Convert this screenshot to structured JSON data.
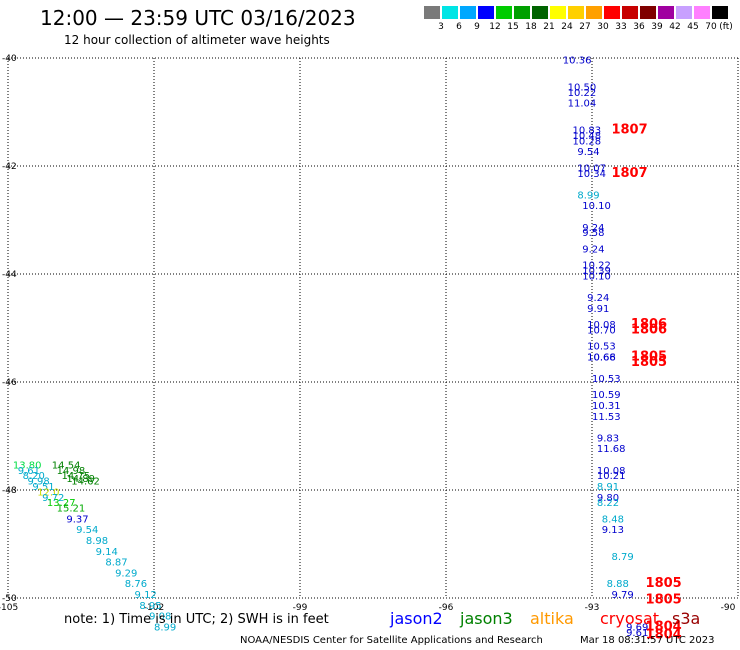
{
  "header": {
    "title": "12:00 — 23:59 UTC 03/16/2023",
    "subtitle": "12 hour collection of altimeter wave heights"
  },
  "color_scale": {
    "unit": "(ft)",
    "bins": [
      {
        "label": "3",
        "color": "#7a7a7a"
      },
      {
        "label": "6",
        "color": "#00e5e5"
      },
      {
        "label": "9",
        "color": "#00a8ff"
      },
      {
        "label": "12",
        "color": "#0000ff"
      },
      {
        "label": "15",
        "color": "#00cc00"
      },
      {
        "label": "18",
        "color": "#00a000"
      },
      {
        "label": "21",
        "color": "#006400"
      },
      {
        "label": "24",
        "color": "#ffff00"
      },
      {
        "label": "27",
        "color": "#ffd000"
      },
      {
        "label": "30",
        "color": "#ffa000"
      },
      {
        "label": "33",
        "color": "#ff0000"
      },
      {
        "label": "36",
        "color": "#c80000"
      },
      {
        "label": "39",
        "color": "#800000"
      },
      {
        "label": "42",
        "color": "#a000a0"
      },
      {
        "label": "45",
        "color": "#c8a0ff"
      },
      {
        "label": "70",
        "color": "#ff80ff"
      },
      {
        "label": "",
        "color": "#000000"
      }
    ]
  },
  "map": {
    "lon_ticks": [
      "-105",
      "-102",
      "-99",
      "-96",
      "-93",
      "-90"
    ],
    "lat_ticks": [
      "-40",
      "-42",
      "-44",
      "-46",
      "-48",
      "-50"
    ],
    "lon_range": [
      -105,
      -90
    ],
    "lat_range": [
      -40,
      -50
    ]
  },
  "observations": [
    {
      "lon": -93.6,
      "lat": -40.1,
      "text": "10.36",
      "color": "#0000cc"
    },
    {
      "lon": -93.5,
      "lat": -40.6,
      "text": "10.50",
      "color": "#0000cc"
    },
    {
      "lon": -93.5,
      "lat": -40.7,
      "text": "10.22",
      "color": "#0000cc"
    },
    {
      "lon": -93.5,
      "lat": -40.9,
      "text": "11.04",
      "color": "#0000cc"
    },
    {
      "lon": -93.4,
      "lat": -41.4,
      "text": "10.83",
      "color": "#0000cc"
    },
    {
      "lon": -93.4,
      "lat": -41.5,
      "text": "10.48",
      "color": "#0000cc"
    },
    {
      "lon": -93.4,
      "lat": -41.6,
      "text": "10.28",
      "color": "#0000cc"
    },
    {
      "lon": -93.3,
      "lat": -41.8,
      "text": "9.54",
      "color": "#0000cc"
    },
    {
      "lon": -93.3,
      "lat": -42.1,
      "text": "10.07",
      "color": "#0000cc"
    },
    {
      "lon": -93.3,
      "lat": -42.2,
      "text": "10.34",
      "color": "#0000cc"
    },
    {
      "lon": -93.3,
      "lat": -42.6,
      "text": "8.99",
      "color": "#00aacc"
    },
    {
      "lon": -93.2,
      "lat": -42.8,
      "text": "10.10",
      "color": "#0000cc"
    },
    {
      "lon": -93.2,
      "lat": -43.2,
      "text": "9.24",
      "color": "#0000cc"
    },
    {
      "lon": -93.2,
      "lat": -43.3,
      "text": "9.58",
      "color": "#0000cc"
    },
    {
      "lon": -93.2,
      "lat": -43.6,
      "text": "9.24",
      "color": "#0000cc"
    },
    {
      "lon": -93.2,
      "lat": -43.9,
      "text": "10.22",
      "color": "#0000cc"
    },
    {
      "lon": -93.2,
      "lat": -44.0,
      "text": "10.39",
      "color": "#0000cc"
    },
    {
      "lon": -93.2,
      "lat": -44.1,
      "text": "10.10",
      "color": "#0000cc"
    },
    {
      "lon": -93.1,
      "lat": -44.5,
      "text": "9.24",
      "color": "#0000cc"
    },
    {
      "lon": -93.1,
      "lat": -44.7,
      "text": "9.91",
      "color": "#0000cc"
    },
    {
      "lon": -93.1,
      "lat": -45.0,
      "text": "10.08",
      "color": "#0000cc"
    },
    {
      "lon": -93.1,
      "lat": -45.1,
      "text": "10.70",
      "color": "#0000cc"
    },
    {
      "lon": -93.1,
      "lat": -45.4,
      "text": "10.53",
      "color": "#0000cc"
    },
    {
      "lon": -93.1,
      "lat": -45.6,
      "text": "10.68",
      "color": "#0000cc"
    },
    {
      "lon": -93.1,
      "lat": -45.6,
      "text": "10.66",
      "color": "#0000cc"
    },
    {
      "lon": -93.0,
      "lat": -46.0,
      "text": "10.53",
      "color": "#0000cc"
    },
    {
      "lon": -93.0,
      "lat": -46.3,
      "text": "10.59",
      "color": "#0000cc"
    },
    {
      "lon": -93.0,
      "lat": -46.5,
      "text": "10.31",
      "color": "#0000cc"
    },
    {
      "lon": -93.0,
      "lat": -46.7,
      "text": "11.53",
      "color": "#0000cc"
    },
    {
      "lon": -92.9,
      "lat": -47.1,
      "text": "9.83",
      "color": "#0000cc"
    },
    {
      "lon": -92.9,
      "lat": -47.3,
      "text": "11.68",
      "color": "#0000cc"
    },
    {
      "lon": -92.9,
      "lat": -47.7,
      "text": "10.08",
      "color": "#0000cc"
    },
    {
      "lon": -92.9,
      "lat": -47.8,
      "text": "10.21",
      "color": "#0000cc"
    },
    {
      "lon": -92.9,
      "lat": -48.0,
      "text": "8.91",
      "color": "#00aacc"
    },
    {
      "lon": -92.9,
      "lat": -48.2,
      "text": "9.80",
      "color": "#0000cc"
    },
    {
      "lon": -92.9,
      "lat": -48.3,
      "text": "8.22",
      "color": "#00aacc"
    },
    {
      "lon": -92.8,
      "lat": -48.6,
      "text": "8.48",
      "color": "#00aacc"
    },
    {
      "lon": -92.8,
      "lat": -48.8,
      "text": "9.13",
      "color": "#0000cc"
    },
    {
      "lon": -92.6,
      "lat": -49.3,
      "text": "8.79",
      "color": "#00aacc"
    },
    {
      "lon": -92.7,
      "lat": -49.8,
      "text": "8.88",
      "color": "#00aacc"
    },
    {
      "lon": -92.6,
      "lat": -50.0,
      "text": "9.79",
      "color": "#0000cc"
    },
    {
      "lon": -92.3,
      "lat": -50.6,
      "text": "9.69",
      "color": "#0000cc"
    },
    {
      "lon": -92.3,
      "lat": -50.7,
      "text": "9.61",
      "color": "#0000cc"
    },
    {
      "lon": -104.9,
      "lat": -47.6,
      "text": "13.80",
      "color": "#00dd44"
    },
    {
      "lon": -104.8,
      "lat": -47.7,
      "text": "9.61",
      "color": "#00aacc"
    },
    {
      "lon": -104.7,
      "lat": -47.8,
      "text": "8.20",
      "color": "#00aacc"
    },
    {
      "lon": -104.6,
      "lat": -47.9,
      "text": "9.98",
      "color": "#00aacc"
    },
    {
      "lon": -104.5,
      "lat": -48.0,
      "text": "9.51",
      "color": "#00aacc"
    },
    {
      "lon": -104.4,
      "lat": -48.1,
      "text": "12.0",
      "color": "#ccdd00"
    },
    {
      "lon": -104.3,
      "lat": -48.2,
      "text": "9.72",
      "color": "#00aacc"
    },
    {
      "lon": -104.2,
      "lat": -48.3,
      "text": "13.27",
      "color": "#00cc00"
    },
    {
      "lon": -104.0,
      "lat": -48.4,
      "text": "15.21",
      "color": "#00aa00"
    },
    {
      "lon": -103.8,
      "lat": -48.6,
      "text": "9.37",
      "color": "#0000cc"
    },
    {
      "lon": -103.6,
      "lat": -48.8,
      "text": "9.54",
      "color": "#00aacc"
    },
    {
      "lon": -103.4,
      "lat": -49.0,
      "text": "8.98",
      "color": "#00aacc"
    },
    {
      "lon": -103.2,
      "lat": -49.2,
      "text": "9.14",
      "color": "#00aacc"
    },
    {
      "lon": -103.0,
      "lat": -49.4,
      "text": "8.87",
      "color": "#00aacc"
    },
    {
      "lon": -102.8,
      "lat": -49.6,
      "text": "9.29",
      "color": "#00aacc"
    },
    {
      "lon": -102.6,
      "lat": -49.8,
      "text": "8.76",
      "color": "#00aacc"
    },
    {
      "lon": -102.4,
      "lat": -50.0,
      "text": "9.12",
      "color": "#00aacc"
    },
    {
      "lon": -102.3,
      "lat": -50.2,
      "text": "8.95",
      "color": "#00aacc"
    },
    {
      "lon": -102.1,
      "lat": -50.4,
      "text": "9.08",
      "color": "#00aacc"
    },
    {
      "lon": -102.0,
      "lat": -50.6,
      "text": "8.99",
      "color": "#00aacc"
    },
    {
      "lon": -104.1,
      "lat": -47.6,
      "text": "14.54",
      "color": "#008000"
    },
    {
      "lon": -104.0,
      "lat": -47.7,
      "text": "14.98",
      "color": "#008000"
    },
    {
      "lon": -103.9,
      "lat": -47.8,
      "text": "14.75",
      "color": "#008000"
    },
    {
      "lon": -103.8,
      "lat": -47.85,
      "text": "14.89",
      "color": "#008000"
    },
    {
      "lon": -103.7,
      "lat": -47.9,
      "text": "14.62",
      "color": "#008000"
    },
    {
      "lon": -92.6,
      "lat": -41.4,
      "text": "1807",
      "color": "#ff0000"
    },
    {
      "lon": -92.6,
      "lat": -42.2,
      "text": "1807",
      "color": "#ff0000"
    },
    {
      "lon": -92.2,
      "lat": -45.0,
      "text": "1806",
      "color": "#ff0000"
    },
    {
      "lon": -92.2,
      "lat": -45.1,
      "text": "1806",
      "color": "#ff0000"
    },
    {
      "lon": -92.2,
      "lat": -45.6,
      "text": "1805",
      "color": "#ff0000"
    },
    {
      "lon": -92.2,
      "lat": -45.7,
      "text": "1805",
      "color": "#ff0000"
    },
    {
      "lon": -91.9,
      "lat": -49.8,
      "text": "1805",
      "color": "#ff0000"
    },
    {
      "lon": -91.9,
      "lat": -50.1,
      "text": "1805",
      "color": "#ff0000"
    },
    {
      "lon": -91.9,
      "lat": -50.6,
      "text": "1804",
      "color": "#ff0000"
    },
    {
      "lon": -91.9,
      "lat": -50.75,
      "text": "1804",
      "color": "#ff0000"
    }
  ],
  "footer": {
    "note": "note:  1) Time is in UTC;  2) SWH is in feet",
    "missions": [
      {
        "label": "jason2",
        "color": "#0000ff"
      },
      {
        "label": "jason3",
        "color": "#008000"
      },
      {
        "label": "altika",
        "color": "#ff9900"
      },
      {
        "label": "cryosat",
        "color": "#ff0000"
      },
      {
        "label": "s3a",
        "color": "#990000"
      }
    ],
    "credit": "NOAA/NESDIS Center for Satellite Applications and Research",
    "timestamp": "Mar 18 08:31:57 UTC 2023"
  }
}
